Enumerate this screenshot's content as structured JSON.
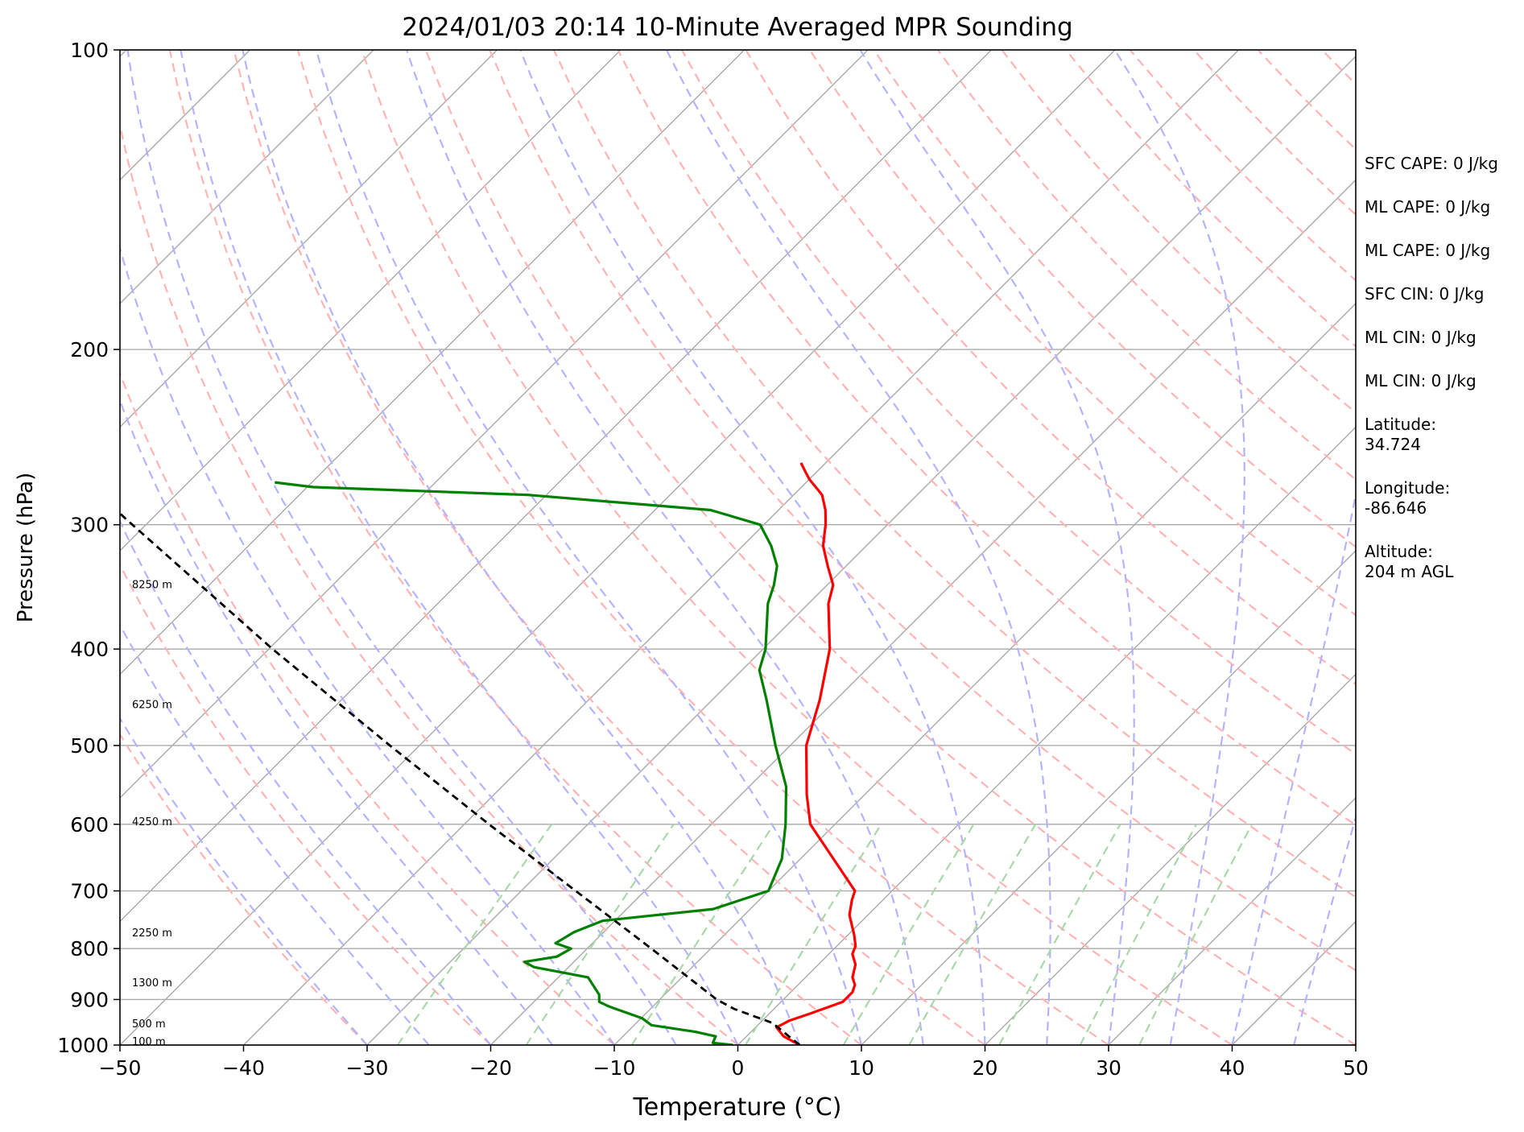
{
  "chart_data": {
    "type": "line",
    "title": "2024/01/03 20:14 10-Minute Averaged MPR Sounding",
    "xlabel": "Temperature (°C)",
    "ylabel": "Pressure (hPa)",
    "xlim": [
      -50,
      50
    ],
    "ylim": [
      1000,
      100
    ],
    "y_scale": "log",
    "x_ticks": [
      "−50",
      "−40",
      "−30",
      "−20",
      "−10",
      "0",
      "10",
      "20",
      "30",
      "40",
      "50"
    ],
    "y_ticks": [
      "100",
      "200",
      "300",
      "400",
      "500",
      "600",
      "700",
      "800",
      "900",
      "1000"
    ],
    "grid": "horizontal isobars",
    "skew": true,
    "height_labels": [
      {
        "text": "8250 m",
        "p": 345
      },
      {
        "text": "6250 m",
        "p": 455
      },
      {
        "text": "4250 m",
        "p": 597
      },
      {
        "text": "2250 m",
        "p": 772
      },
      {
        "text": "1300 m",
        "p": 866
      },
      {
        "text": "500 m",
        "p": 953
      },
      {
        "text": "100 m",
        "p": 993
      }
    ],
    "series": [
      {
        "kind": "temperature",
        "color": "#ff0000",
        "points": [
          [
            1000,
            5
          ],
          [
            980,
            3
          ],
          [
            960,
            1.7
          ],
          [
            945,
            2.2
          ],
          [
            930,
            3.3
          ],
          [
            905,
            5
          ],
          [
            885,
            5
          ],
          [
            870,
            4.6
          ],
          [
            855,
            3.8
          ],
          [
            830,
            3
          ],
          [
            810,
            1.9
          ],
          [
            795,
            1.5
          ],
          [
            775,
            0.5
          ],
          [
            740,
            -1.5
          ],
          [
            715,
            -2.5
          ],
          [
            700,
            -3
          ],
          [
            600,
            -12
          ],
          [
            560,
            -14.7
          ],
          [
            500,
            -18.7
          ],
          [
            450,
            -21.3
          ],
          [
            400,
            -24.6
          ],
          [
            360,
            -28.4
          ],
          [
            345,
            -29.5
          ],
          [
            330,
            -31.5
          ],
          [
            315,
            -33.5
          ],
          [
            300,
            -35
          ],
          [
            290,
            -36.2
          ],
          [
            280,
            -37.7
          ],
          [
            270,
            -40
          ],
          [
            265,
            -41
          ],
          [
            260,
            -42
          ]
        ]
      },
      {
        "kind": "dewpoint",
        "color": "#008000",
        "points": [
          [
            1000,
            -0.4
          ],
          [
            995,
            -2.2
          ],
          [
            980,
            -2.5
          ],
          [
            970,
            -4.5
          ],
          [
            955,
            -8.6
          ],
          [
            940,
            -9.9
          ],
          [
            915,
            -13.5
          ],
          [
            905,
            -14.7
          ],
          [
            890,
            -15.3
          ],
          [
            870,
            -16.6
          ],
          [
            855,
            -17.6
          ],
          [
            835,
            -22.8
          ],
          [
            825,
            -24
          ],
          [
            815,
            -21.8
          ],
          [
            800,
            -21.3
          ],
          [
            790,
            -23
          ],
          [
            770,
            -22.4
          ],
          [
            750,
            -21
          ],
          [
            730,
            -13
          ],
          [
            700,
            -10
          ],
          [
            650,
            -11.5
          ],
          [
            600,
            -14
          ],
          [
            550,
            -17
          ],
          [
            500,
            -21.2
          ],
          [
            450,
            -25.6
          ],
          [
            420,
            -28.6
          ],
          [
            400,
            -29.8
          ],
          [
            360,
            -33.3
          ],
          [
            345,
            -34.3
          ],
          [
            330,
            -35.6
          ],
          [
            315,
            -37.7
          ],
          [
            300,
            -40.3
          ],
          [
            290,
            -45.5
          ],
          [
            280,
            -61.5
          ],
          [
            275,
            -79.5
          ],
          [
            272,
            -83
          ]
        ]
      },
      {
        "kind": "parcel",
        "color": "#000000",
        "points": [
          [
            1000,
            5
          ],
          [
            950,
            1
          ],
          [
            920,
            -3.2
          ],
          [
            900,
            -5.4
          ],
          [
            800,
            -14.8
          ],
          [
            700,
            -25.6
          ],
          [
            600,
            -38
          ],
          [
            500,
            -52.4
          ],
          [
            400,
            -69.7
          ],
          [
            300,
            -91.1
          ],
          [
            262,
            -101.1
          ]
        ]
      }
    ],
    "side_text": [
      "SFC CAPE: 0 J/kg",
      "ML CAPE: 0 J/kg",
      "ML CAPE: 0 J/kg",
      "SFC CIN: 0 J/kg",
      "ML CIN: 0 J/kg",
      "ML CIN: 0 J/kg",
      "Latitude:\n34.724",
      "Longitude:\n-86.646",
      "Altitude:\n204 m AGL"
    ]
  },
  "colors": {
    "temperature": "#ff0000",
    "dewpoint": "#008000",
    "parcel": "#000000",
    "isotherm": "#aaaaaa",
    "dry_adiabat": "#ffb3b3",
    "moist_adiabat": "#b3b3ff",
    "mixing_ratio": "#a8d8a8"
  }
}
